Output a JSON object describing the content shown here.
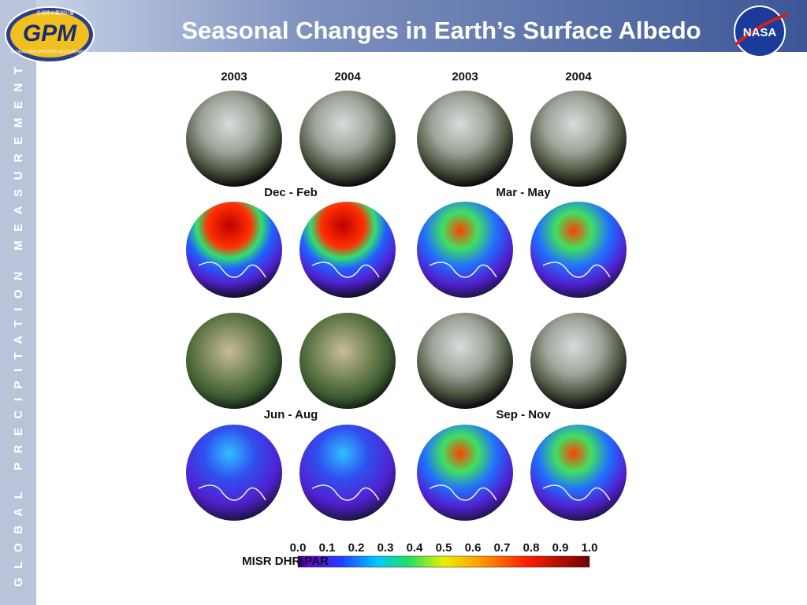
{
  "header": {
    "title": "Seasonal Changes in Earth’s Surface Albedo",
    "logo_left": {
      "text": "GPM",
      "subtitle": "GLOBAL PRECIPITATION MEASUREMENT",
      "caption": "全球降水觀測計畫"
    },
    "logo_right": "NASA"
  },
  "sidebar": "GLOBAL PRECIPITATION MEASUREMENT",
  "figure": {
    "years": [
      "2003",
      "2004",
      "2003",
      "2004"
    ],
    "seasons": [
      "Dec - Feb",
      "Mar - May",
      "Jun - Aug",
      "Sep - Nov"
    ],
    "colorbar": {
      "label": "MISR DHR-PAR",
      "ticks": [
        "0.0",
        "0.1",
        "0.2",
        "0.3",
        "0.4",
        "0.5",
        "0.6",
        "0.7",
        "0.8",
        "0.9",
        "1.0"
      ]
    }
  }
}
